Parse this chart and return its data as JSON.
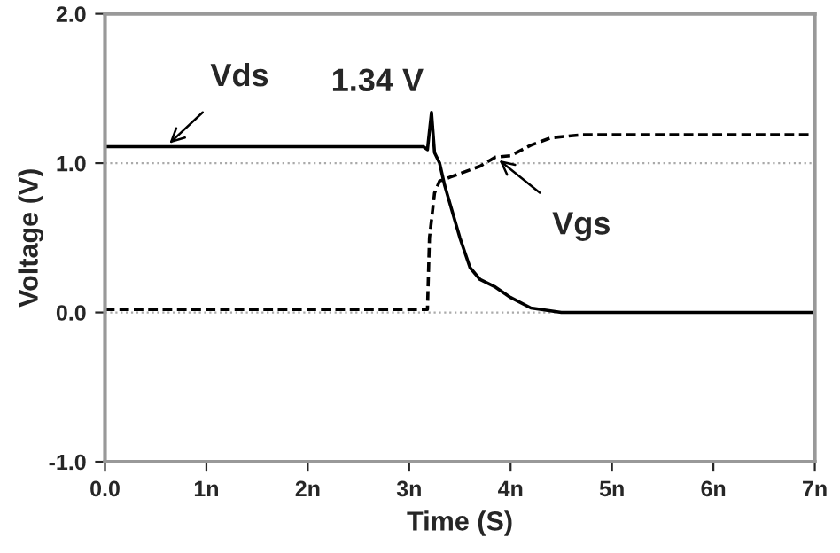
{
  "chart_data": {
    "type": "line",
    "xlabel": "Time (S)",
    "ylabel": "Voltage (V)",
    "xlim": [
      0,
      7
    ],
    "ylim": [
      -1,
      2
    ],
    "xticks": [
      {
        "value": 0,
        "label": "0.0"
      },
      {
        "value": 1,
        "label": "1n"
      },
      {
        "value": 2,
        "label": "2n"
      },
      {
        "value": 3,
        "label": "3n"
      },
      {
        "value": 4,
        "label": "4n"
      },
      {
        "value": 5,
        "label": "5n"
      },
      {
        "value": 6,
        "label": "6n"
      },
      {
        "value": 7,
        "label": "7n"
      }
    ],
    "yticks": [
      {
        "value": -1,
        "label": "-1.0"
      },
      {
        "value": 0,
        "label": "0.0"
      },
      {
        "value": 1,
        "label": "1.0"
      },
      {
        "value": 2,
        "label": "2.0"
      }
    ],
    "grid": false,
    "legend": false,
    "marker": "none",
    "series": [
      {
        "color": "#000000",
        "line_style": "solid",
        "x": [
          0,
          3.14,
          3.18,
          3.22,
          3.25,
          3.3,
          3.35,
          3.5,
          3.6,
          3.7,
          3.85,
          4.0,
          4.2,
          4.5,
          7
        ],
        "values": [
          1.11,
          1.11,
          1.09,
          1.34,
          1.07,
          1.0,
          0.85,
          0.5,
          0.3,
          0.22,
          0.17,
          0.1,
          0.03,
          0.0,
          0.0
        ]
      },
      {
        "color": "#000000",
        "line_style": "dashed",
        "x": [
          0,
          3.18,
          3.2,
          3.25,
          3.3,
          3.5,
          3.7,
          3.85,
          4.0,
          4.2,
          4.4,
          4.7,
          7
        ],
        "values": [
          0.02,
          0.02,
          0.5,
          0.8,
          0.88,
          0.93,
          0.98,
          1.04,
          1.05,
          1.12,
          1.17,
          1.19,
          1.19
        ]
      }
    ],
    "ref_lines": [
      {
        "axis": "y",
        "value": 1.0,
        "color": "#aaaaaa",
        "line_style": "dotted"
      },
      {
        "axis": "y",
        "value": 0.0,
        "color": "#aaaaaa",
        "line_style": "dotted"
      }
    ],
    "annotations": [
      {
        "text": "Vds",
        "x": 0.6,
        "y": 1.11
      },
      {
        "text": "1.34 V",
        "x": 3.22,
        "y": 1.34
      },
      {
        "text": "Vgs",
        "x": 3.85,
        "y": 1.04
      }
    ]
  }
}
